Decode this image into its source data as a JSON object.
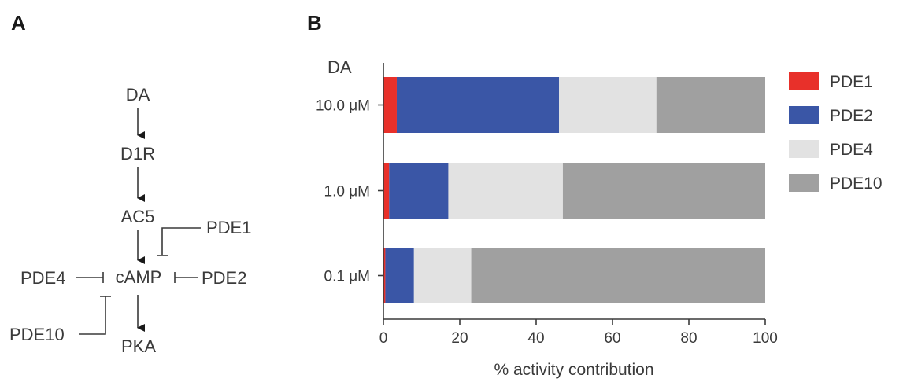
{
  "panels": {
    "a": "A",
    "b": "B"
  },
  "diagram": {
    "nodes": {
      "da": "DA",
      "d1r": "D1R",
      "ac5": "AC5",
      "camp": "cAMP",
      "pka": "PKA",
      "pde1": "PDE1",
      "pde2": "PDE2",
      "pde4": "PDE4",
      "pde10": "PDE10"
    }
  },
  "chart_data": {
    "type": "bar",
    "orientation": "horizontal",
    "stacked": true,
    "category_title": "DA",
    "categories": [
      "10.0 μM",
      "1.0 μM",
      "0.1 μM"
    ],
    "series": [
      {
        "name": "PDE1",
        "color": "#e8302a",
        "values": [
          3.5,
          1.5,
          0.5
        ]
      },
      {
        "name": "PDE2",
        "color": "#3a56a6",
        "values": [
          42.5,
          15.5,
          7.5
        ]
      },
      {
        "name": "PDE4",
        "color": "#e2e2e2",
        "values": [
          25.5,
          30,
          15
        ]
      },
      {
        "name": "PDE10",
        "color": "#a0a0a0",
        "values": [
          28.5,
          53,
          77
        ]
      }
    ],
    "xlabel": "% activity contribution",
    "xlim": [
      0,
      100
    ],
    "xticks": [
      "0",
      "20",
      "40",
      "60",
      "80",
      "100"
    ],
    "legend": "right"
  }
}
